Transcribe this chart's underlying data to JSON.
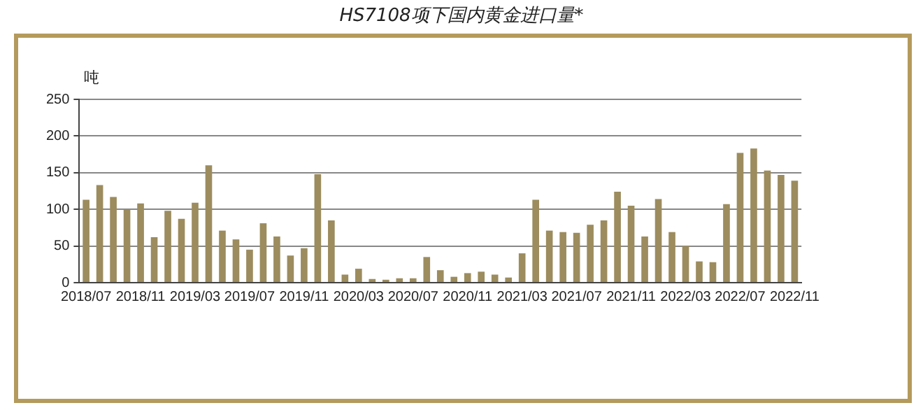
{
  "chart_data": {
    "type": "bar",
    "title": "HS7108项下国内黄金进口量*",
    "ylabel": "吨",
    "categories": [
      "2018/07",
      null,
      null,
      null,
      "2018/11",
      null,
      null,
      null,
      "2019/03",
      null,
      null,
      null,
      "2019/07",
      null,
      null,
      null,
      "2019/11",
      null,
      null,
      null,
      "2020/03",
      null,
      null,
      null,
      "2020/07",
      null,
      null,
      null,
      "2020/11",
      null,
      null,
      null,
      "2021/03",
      null,
      null,
      null,
      "2021/07",
      null,
      null,
      null,
      "2021/11",
      null,
      null,
      null,
      "2022/03",
      null,
      null,
      null,
      "2022/07",
      null,
      null,
      null,
      "2022/11"
    ],
    "values": [
      113,
      133,
      117,
      100,
      108,
      62,
      98,
      87,
      109,
      160,
      71,
      59,
      45,
      81,
      63,
      37,
      47,
      148,
      85,
      11,
      19,
      5,
      4,
      6,
      6,
      35,
      17,
      8,
      13,
      15,
      11,
      7,
      40,
      113,
      71,
      69,
      68,
      79,
      85,
      124,
      105,
      63,
      114,
      69,
      50,
      29,
      28,
      107,
      177,
      183,
      153,
      147,
      139
    ],
    "color": "#9c8c5e",
    "ylim": [
      0,
      250
    ],
    "yticks": [
      0,
      50,
      100,
      150,
      200,
      250
    ],
    "grid": "y"
  }
}
